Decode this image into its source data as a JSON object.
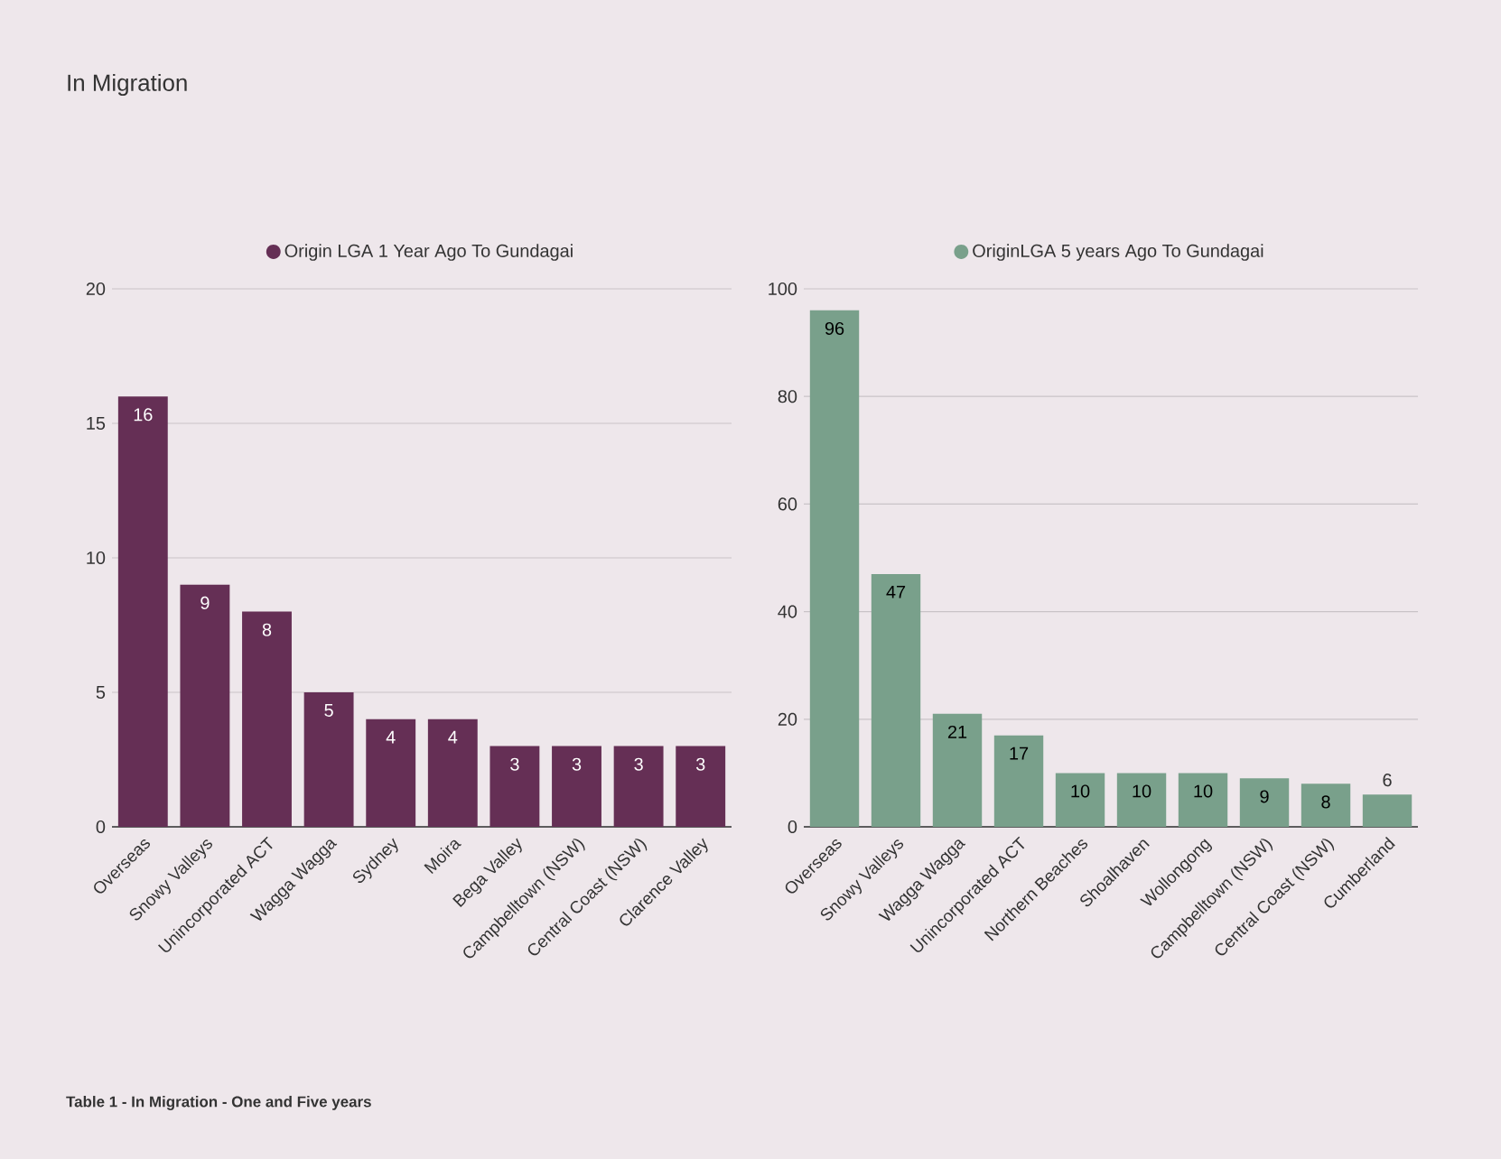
{
  "chart_data": [
    {
      "type": "bar",
      "title": "In Migration",
      "annotations": [
        "Table 1 - In Migration - One and Five years"
      ],
      "categories": [
        "Overseas",
        "Snowy Valleys",
        "Unincorporated ACT",
        "Wagga Wagga",
        "Sydney",
        "Moira",
        "Bega Valley",
        "Campbelltown (NSW)",
        "Central Coast (NSW)",
        "Clarence Valley"
      ],
      "series": [
        {
          "name": "Origin LGA 1 Year Ago To Gundagai",
          "color": "#652f55",
          "values": [
            16,
            9,
            8,
            5,
            4,
            4,
            3,
            3,
            3,
            3
          ]
        }
      ],
      "ylim": [
        0,
        20
      ],
      "yticks": [
        0,
        5,
        10,
        15,
        20
      ],
      "grid": "y",
      "legend": "top",
      "data_labels": true
    },
    {
      "type": "bar",
      "categories": [
        "Overseas",
        "Snowy Valleys",
        "Wagga Wagga",
        "Unincorporated ACT",
        "Northern Beaches",
        "Shoalhaven",
        "Wollongong",
        "Campbelltown (NSW)",
        "Central Coast (NSW)",
        "Cumberland"
      ],
      "series": [
        {
          "name": "OriginLGA 5 years Ago To Gundagai",
          "color": "#79a08b",
          "values": [
            96,
            47,
            21,
            17,
            10,
            10,
            10,
            9,
            8,
            6
          ]
        }
      ],
      "ylim": [
        0,
        100
      ],
      "yticks": [
        0,
        20,
        40,
        60,
        80,
        100
      ],
      "grid": "y",
      "legend": "top",
      "data_labels": true
    }
  ]
}
